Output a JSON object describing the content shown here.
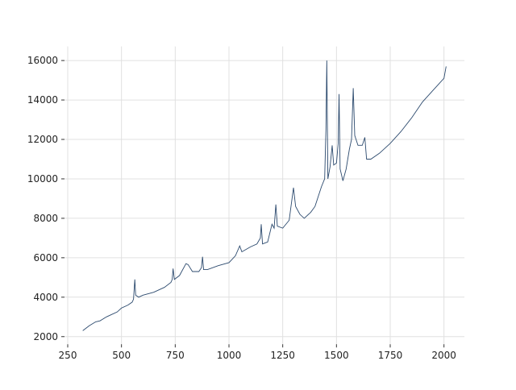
{
  "chart_data": {
    "type": "line",
    "x": [
      320,
      350,
      380,
      400,
      430,
      450,
      480,
      500,
      530,
      550,
      556,
      562,
      566,
      580,
      600,
      650,
      700,
      730,
      736,
      740,
      746,
      770,
      800,
      810,
      830,
      860,
      872,
      877,
      882,
      900,
      950,
      1000,
      1030,
      1050,
      1060,
      1100,
      1130,
      1146,
      1150,
      1156,
      1180,
      1200,
      1210,
      1218,
      1225,
      1250,
      1280,
      1300,
      1310,
      1330,
      1350,
      1380,
      1400,
      1430,
      1445,
      1451,
      1455,
      1460,
      1470,
      1480,
      1487,
      1500,
      1508,
      1512,
      1517,
      1530,
      1545,
      1560,
      1570,
      1578,
      1585,
      1600,
      1620,
      1632,
      1640,
      1660,
      1700,
      1750,
      1800,
      1850,
      1900,
      1950,
      2000,
      2010
    ],
    "series": [
      {
        "color": "#2c4a6e",
        "values": [
          2300,
          2550,
          2750,
          2800,
          3000,
          3100,
          3250,
          3450,
          3600,
          3750,
          3900,
          4900,
          4100,
          4000,
          4100,
          4250,
          4500,
          4750,
          4900,
          5450,
          4900,
          5100,
          5700,
          5650,
          5300,
          5300,
          5500,
          6050,
          5400,
          5400,
          5600,
          5750,
          6100,
          6600,
          6300,
          6550,
          6700,
          7000,
          7700,
          6700,
          6800,
          7700,
          7500,
          8700,
          7600,
          7500,
          7900,
          9550,
          8600,
          8200,
          8000,
          8300,
          8600,
          9600,
          10000,
          12500,
          16000,
          10000,
          10600,
          11700,
          10700,
          10800,
          11800,
          14300,
          10500,
          9900,
          10500,
          11500,
          12000,
          14600,
          12200,
          11700,
          11700,
          12100,
          11000,
          11000,
          11300,
          11800,
          12400,
          13100,
          13900,
          14500,
          15100,
          15700
        ]
      }
    ],
    "xlim": [
      235,
      2095
    ],
    "ylim": [
      1614,
      16716
    ],
    "xticks": [
      250,
      500,
      750,
      1000,
      1250,
      1500,
      1750,
      2000
    ],
    "yticks": [
      2000,
      4000,
      6000,
      8000,
      10000,
      12000,
      14000,
      16000
    ],
    "grid": true
  }
}
